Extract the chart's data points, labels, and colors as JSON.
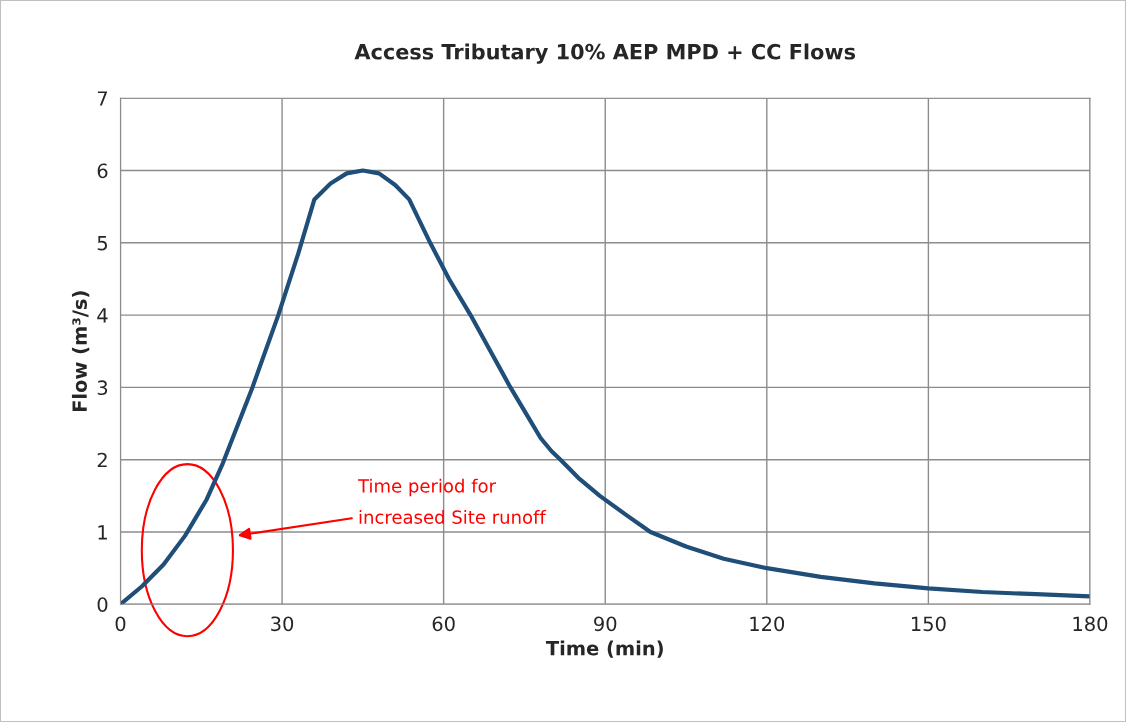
{
  "chart_data": {
    "type": "line",
    "title": "Access Tributary 10% AEP MPD + CC Flows",
    "xlabel": "Time (min)",
    "ylabel": "Flow (m³/s)",
    "x": [
      0,
      4,
      8,
      12,
      16,
      19,
      24.5,
      29.3,
      33,
      36,
      39,
      42,
      45,
      48,
      51,
      53.6,
      57.5,
      61,
      65,
      68.7,
      72.4,
      76,
      78,
      80,
      81.7,
      85,
      89,
      94,
      98.4,
      105,
      112,
      120,
      130,
      140,
      150,
      160,
      170,
      180
    ],
    "series": [
      {
        "color": "#1f4e79",
        "values": [
          0,
          0.25,
          0.55,
          0.95,
          1.45,
          1.95,
          3,
          4,
          4.85,
          5.6,
          5.82,
          5.96,
          6,
          5.96,
          5.8,
          5.6,
          5,
          4.5,
          4,
          3.5,
          3,
          2.55,
          2.3,
          2.12,
          2,
          1.75,
          1.5,
          1.23,
          1,
          0.8,
          0.63,
          0.5,
          0.38,
          0.29,
          0.22,
          0.17,
          0.14,
          0.11
        ]
      }
    ],
    "xlim": [
      0,
      180
    ],
    "xticks": [
      0,
      30,
      60,
      90,
      120,
      150,
      180
    ],
    "ylim": [
      0,
      7
    ],
    "yticks": [
      0,
      1,
      2,
      3,
      4,
      5,
      6,
      7
    ],
    "grid": true,
    "legend": false,
    "marker": "none",
    "line_style": "solid",
    "annotations": [
      "Time period for\nincreased Site runoff"
    ]
  }
}
